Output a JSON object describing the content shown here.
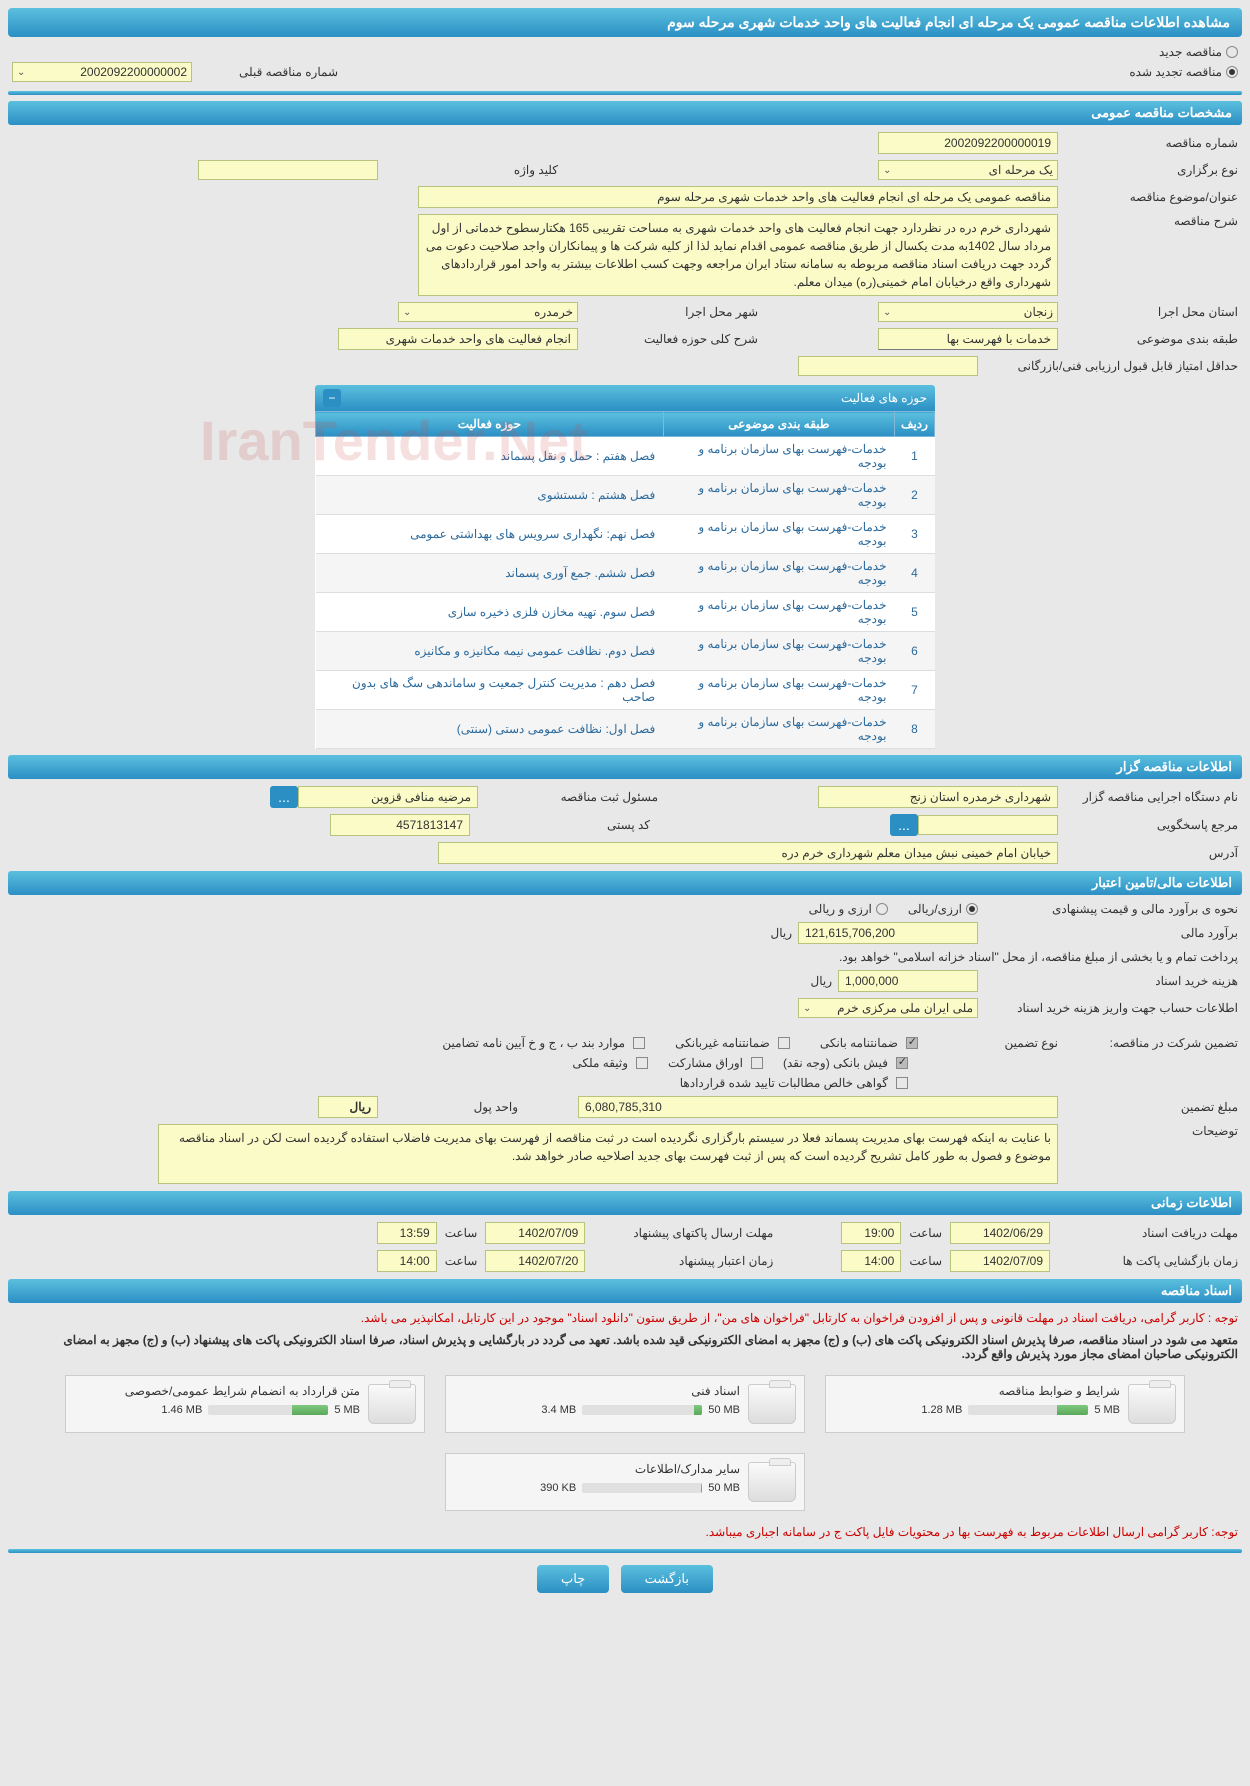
{
  "page_title": "مشاهده اطلاعات مناقصه عمومی یک مرحله ای انجام فعالیت های واحد خدمات شهری مرحله سوم",
  "top_radio": {
    "new_label": "مناقصه جدید",
    "renewed_label": "مناقصه تجدید شده",
    "selected": "renewed"
  },
  "prev_tender": {
    "label": "شماره مناقصه قبلی",
    "value": "2002092200000002"
  },
  "sections": {
    "general": "مشخصات مناقصه عمومی",
    "tenderer": "اطلاعات مناقصه گزار",
    "financial": "اطلاعات مالی/تامین اعتبار",
    "timing": "اطلاعات زمانی",
    "docs": "اسناد مناقصه"
  },
  "general": {
    "tender_no_label": "شماره مناقصه",
    "tender_no": "2002092200000019",
    "type_label": "نوع برگزاری",
    "type_value": "یک مرحله ای",
    "keyword_label": "کلید واژه",
    "keyword_value": "",
    "subject_label": "عنوان/موضوع مناقصه",
    "subject_value": "مناقصه عمومی یک مرحله ای انجام فعالیت های واحد خدمات شهری مرحله سوم",
    "desc_label": "شرح مناقصه",
    "desc_value": "شهرداری خرم دره در نظردارد جهت انجام فعالیت های واحد خدمات شهری به مساحت تقریبی 165 هکتارسطوح خدماتی از اول مرداد سال 1402به مدت یکسال از طریق مناقصه عمومی اقدام نماید لذا از کلیه شرکت ها و پیمانکاران واجد صلاحیت دعوت می گردد جهت دریافت اسناد مناقصه مربوطه به سامانه ستاد ایران مراجعه وجهت کسب اطلاعات بیشتر به واحد امور قراردادهای شهرداری واقع درخیابان امام خمینی(ره) میدان معلم.",
    "province_label": "استان محل اجرا",
    "province_value": "زنجان",
    "city_label": "شهر محل اجرا",
    "city_value": "خرمدره",
    "category_label": "طبقه بندی موضوعی",
    "category_value": "خدمات با فهرست بها",
    "scope_label": "شرح کلی حوزه فعالیت",
    "scope_value": "انجام فعالیت های واحد خدمات شهری",
    "min_score_label": "حداقل امتیاز قابل قبول ارزیابی فنی/بازرگانی",
    "min_score_value": ""
  },
  "activity_table": {
    "title": "حوزه های فعالیت",
    "columns": [
      "ردیف",
      "طبقه بندی موضوعی",
      "حوزه فعالیت"
    ],
    "rows": [
      [
        "1",
        "خدمات-فهرست بهای سازمان برنامه و بودجه",
        "فصل هفتم : حمل و نقل پسماند"
      ],
      [
        "2",
        "خدمات-فهرست بهای سازمان برنامه و بودجه",
        "فصل هشتم : شستشوی"
      ],
      [
        "3",
        "خدمات-فهرست بهای سازمان برنامه و بودجه",
        "فصل نهم: نگهداری سرویس های بهداشتی عمومی"
      ],
      [
        "4",
        "خدمات-فهرست بهای سازمان برنامه و بودجه",
        "فصل ششم. جمع آوری پسماند"
      ],
      [
        "5",
        "خدمات-فهرست بهای سازمان برنامه و بودجه",
        "فصل سوم. تهیه مخازن فلزی ذخیره سازی"
      ],
      [
        "6",
        "خدمات-فهرست بهای سازمان برنامه و بودجه",
        "فصل دوم. نظافت عمومی نیمه مکانیزه و مکانیزه"
      ],
      [
        "7",
        "خدمات-فهرست بهای سازمان برنامه و بودجه",
        "فصل دهم : مدیریت کنترل جمعیت و ساماندهی سگ های بدون صاحب"
      ],
      [
        "8",
        "خدمات-فهرست بهای سازمان برنامه و بودجه",
        "فصل اول: نظافت عمومی دستی (سنتی)"
      ]
    ]
  },
  "tenderer": {
    "org_label": "نام دستگاه اجرایی مناقصه گزار",
    "org_value": "شهرداری خرمدره استان زنج",
    "reg_officer_label": "مسئول ثبت مناقصه",
    "reg_officer_value": "مرضیه منافی قزوین",
    "resp_label": "مرجع پاسخگویی",
    "resp_value": "",
    "postal_label": "کد پستی",
    "postal_value": "4571813147",
    "address_label": "آدرس",
    "address_value": "خیابان امام خمینی نبش میدان معلم شهرداری خرم دره"
  },
  "financial": {
    "method_label": "نحوه ی برآورد مالی و قیمت پیشنهادی",
    "opt_rial": "ارزی/ریالی",
    "opt_both": "ارزی و ریالی",
    "estimate_label": "برآورد مالی",
    "estimate_value": "121,615,706,200",
    "currency": "ریال",
    "treasury_note": "پرداخت تمام و یا بخشی از مبلغ مناقصه، از محل \"اسناد خزانه اسلامی\" خواهد بود.",
    "doc_fee_label": "هزینه خرید اسناد",
    "doc_fee_value": "1,000,000",
    "account_label": "اطلاعات حساب جهت واریز هزینه خرید اسناد",
    "account_value": "ملی ایران ملی مرکزی خرم",
    "guarantee_title": "تضمین شرکت در مناقصه:",
    "guarantee_type_label": "نوع تضمین",
    "cb_bank_guarantee": "ضمانتنامه بانکی",
    "cb_nonbank": "ضمانتنامه غیربانکی",
    "cb_bond_items": "موارد بند ب ، ج و خ آیین نامه تضامین",
    "cb_cash": "فیش بانکی (وجه نقد)",
    "cb_shares": "اوراق مشارکت",
    "cb_property": "وثیقه ملکی",
    "cb_receivable": "گواهی خالص مطالبات تایید شده قراردادها",
    "guarantee_amount_label": "مبلغ تضمین",
    "guarantee_amount_value": "6,080,785,310",
    "unit_label": "واحد پول",
    "unit_value": "ریال",
    "notes_label": "توضیحات",
    "notes_value": "با عنایت به اینکه فهرست بهای مدیریت پسماند فعلا در سیستم بارگزاری نگردیده است در ثبت مناقصه از فهرست بهای مدیریت فاضلاب استفاده گردیده است لکن در اسناد مناقصه موضوع و فصول به طور کامل تشریح گردیده است که پس از ثبت فهرست بهای جدید اصلاحیه صادر خواهد شد."
  },
  "timing": {
    "receive_label": "مهلت دریافت اسناد",
    "receive_date": "1402/06/29",
    "receive_time": "19:00",
    "open_label": "زمان بازگشایی پاکت ها",
    "open_date": "1402/07/09",
    "open_time": "14:00",
    "submit_label": "مهلت ارسال پاکتهای پیشنهاد",
    "submit_date": "1402/07/09",
    "submit_time": "13:59",
    "validity_label": "زمان اعتبار پیشنهاد",
    "validity_date": "1402/07/20",
    "validity_time": "14:00",
    "time_label": "ساعت"
  },
  "docs": {
    "note1": "توجه : کاربر گرامی، دریافت اسناد در مهلت قانونی و پس از افزودن فراخوان به کارتابل \"فراخوان های من\"، از طریق ستون \"دانلود اسناد\" موجود در این کارتابل، امکانپذیر می باشد.",
    "note2": "متعهد می شود در اسناد مناقصه، صرفا پذیرش اسناد الکترونیکی پاکت های (ب) و (ج) مجهز به امضای الکترونیکی قید شده باشد. تعهد می گردد در بارگشایی و پذیرش اسناد، صرفا اسناد الکترونیکی پاکت های پیشنهاد (ب) و (ج) مجهز به امضای الکترونیکی صاحبان امضای مجاز مورد پذیرش واقع گردد.",
    "items": [
      {
        "title": "شرایط و ضوابط مناقصه",
        "used": "1.28 MB",
        "total": "5 MB",
        "pct": 26
      },
      {
        "title": "اسناد فنی",
        "used": "3.4 MB",
        "total": "50 MB",
        "pct": 7
      },
      {
        "title": "متن قرارداد به انضمام شرایط عمومی/خصوصی",
        "used": "1.46 MB",
        "total": "5 MB",
        "pct": 30
      },
      {
        "title": "سایر مدارک/اطلاعات",
        "used": "390 KB",
        "total": "50 MB",
        "pct": 1
      }
    ],
    "footer_note": "توجه: کاربر گرامی ارسال اطلاعات مربوط به فهرست بها در محتویات فایل پاکت ج در سامانه اجباری میباشد."
  },
  "buttons": {
    "back": "بازگشت",
    "print": "چاپ"
  },
  "watermark": "IranTender.Net"
}
